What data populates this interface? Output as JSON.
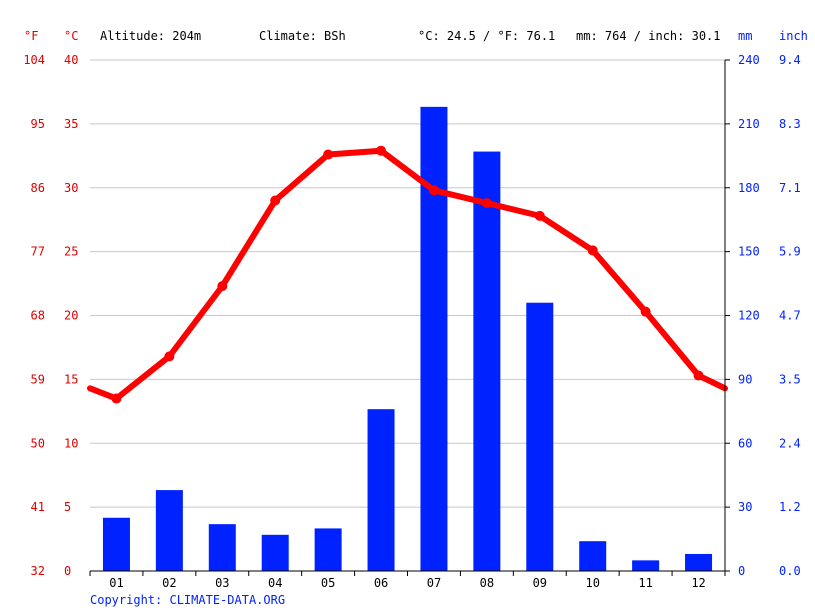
{
  "header": {
    "unit_f": "°F",
    "unit_c": "°C",
    "altitude": "Altitude: 204m",
    "climate": "Climate: BSh",
    "avg_temp": "°C: 24.5 / °F: 76.1",
    "precip_total": "mm: 764 / inch: 30.1",
    "unit_mm": "mm",
    "unit_inch": "inch"
  },
  "copyright": "Copyright: CLIMATE-DATA.ORG",
  "colors": {
    "temperature": "#ff0000",
    "precipitation": "#0022ff",
    "axis_text_left": "#e00000",
    "axis_text_right": "#0022ff"
  },
  "chart_data": {
    "type": "bar",
    "categories": [
      "01",
      "02",
      "03",
      "04",
      "05",
      "06",
      "07",
      "08",
      "09",
      "10",
      "11",
      "12"
    ],
    "series": [
      {
        "type": "bar",
        "axis": "mm",
        "values": [
          25,
          38,
          22,
          17,
          20,
          76,
          218,
          197,
          126,
          14,
          5,
          8
        ]
      },
      {
        "type": "line",
        "axis": "°C",
        "values": [
          13.5,
          16.8,
          22.3,
          29.0,
          32.6,
          32.9,
          29.8,
          28.8,
          27.8,
          25.1,
          20.3,
          15.3
        ],
        "edge_values": [
          14.3,
          14.3
        ]
      }
    ],
    "y_celsius": {
      "ticks": [
        "0",
        "5",
        "10",
        "15",
        "20",
        "25",
        "30",
        "35",
        "40"
      ],
      "ylim": [
        0,
        40
      ]
    },
    "y_fahrenheit": {
      "ticks": [
        "32",
        "41",
        "50",
        "59",
        "68",
        "77",
        "86",
        "95",
        "104"
      ]
    },
    "y_mm": {
      "ticks": [
        "0",
        "30",
        "60",
        "90",
        "120",
        "150",
        "180",
        "210",
        "240"
      ],
      "ylim": [
        0,
        240
      ]
    },
    "y_inch": {
      "ticks": [
        "0.0",
        "1.2",
        "2.4",
        "3.5",
        "4.7",
        "5.9",
        "7.1",
        "8.3",
        "9.4"
      ]
    },
    "grid": true
  }
}
